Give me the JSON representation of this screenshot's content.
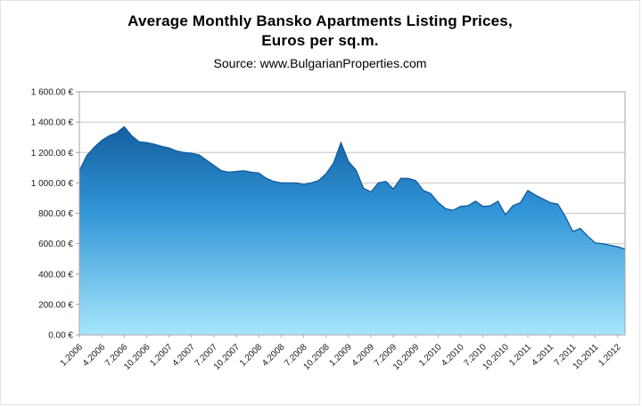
{
  "header": {
    "title_line1": "Average Monthly Bansko Apartments Listing Prices,",
    "title_line2": "Euros per sq.m.",
    "source": "Source: www.BulgarianProperties.com"
  },
  "chart_data": {
    "type": "area",
    "title": "Average Monthly Bansko Apartments Listing Prices, Euros per sq.m.",
    "source": "Source: www.BulgarianProperties.com",
    "xlabel": "",
    "ylabel": "Euros per sq.m.",
    "ylim": [
      0,
      1600
    ],
    "y_tick_step": 200,
    "y_tick_labels": [
      "0.00 €",
      "200.00 €",
      "400.00 €",
      "600.00 €",
      "800.00 €",
      "1 000.00 €",
      "1 200.00 €",
      "1 400.00 €",
      "1 600.00 €"
    ],
    "x_tick_every": 3,
    "grid": "horizontal",
    "legend": "none",
    "x": [
      "1.2006",
      "2.2006",
      "3.2006",
      "4.2006",
      "5.2006",
      "6.2006",
      "7.2006",
      "8.2006",
      "9.2006",
      "10.2006",
      "11.2006",
      "12.2006",
      "1.2007",
      "2.2007",
      "3.2007",
      "4.2007",
      "5.2007",
      "6.2007",
      "7.2007",
      "8.2007",
      "9.2007",
      "10.2007",
      "11.2007",
      "12.2007",
      "1.2008",
      "2.2008",
      "3.2008",
      "4.2008",
      "5.2008",
      "6.2008",
      "7.2008",
      "8.2008",
      "9.2008",
      "10.2008",
      "11.2008",
      "12.2008",
      "1.2009",
      "2.2009",
      "3.2009",
      "4.2009",
      "5.2009",
      "6.2009",
      "7.2009",
      "8.2009",
      "9.2009",
      "10.2009",
      "11.2009",
      "12.2009",
      "1.2010",
      "2.2010",
      "3.2010",
      "4.2010",
      "5.2010",
      "6.2010",
      "7.2010",
      "8.2010",
      "9.2010",
      "10.2010",
      "11.2010",
      "12.2010",
      "1.2011",
      "2.2011",
      "3.2011",
      "4.2011",
      "5.2011",
      "6.2011",
      "7.2011",
      "8.2011",
      "9.2011",
      "10.2011",
      "11.2011",
      "12.2011",
      "1.2012",
      "2.2012"
    ],
    "values": [
      1080,
      1180,
      1235,
      1280,
      1310,
      1330,
      1370,
      1310,
      1270,
      1265,
      1255,
      1240,
      1230,
      1210,
      1200,
      1195,
      1185,
      1150,
      1115,
      1080,
      1070,
      1075,
      1080,
      1070,
      1065,
      1030,
      1010,
      1000,
      1000,
      1000,
      990,
      1000,
      1015,
      1060,
      1130,
      1265,
      1140,
      1085,
      965,
      940,
      1000,
      1010,
      960,
      1030,
      1030,
      1015,
      950,
      930,
      870,
      830,
      820,
      845,
      850,
      880,
      845,
      850,
      880,
      790,
      850,
      870,
      950,
      920,
      895,
      870,
      860,
      780,
      680,
      700,
      650,
      605,
      600,
      590,
      580,
      565
    ],
    "colors": {
      "area_top": "#155fa0",
      "area_mid": "#3094d6",
      "area_bottom": "#a6e6fc",
      "line": "#0e5a9d",
      "grid": "#c6c6c6",
      "plot_border": "#a6a6a6",
      "axis_text": "#1a1a1a"
    }
  }
}
